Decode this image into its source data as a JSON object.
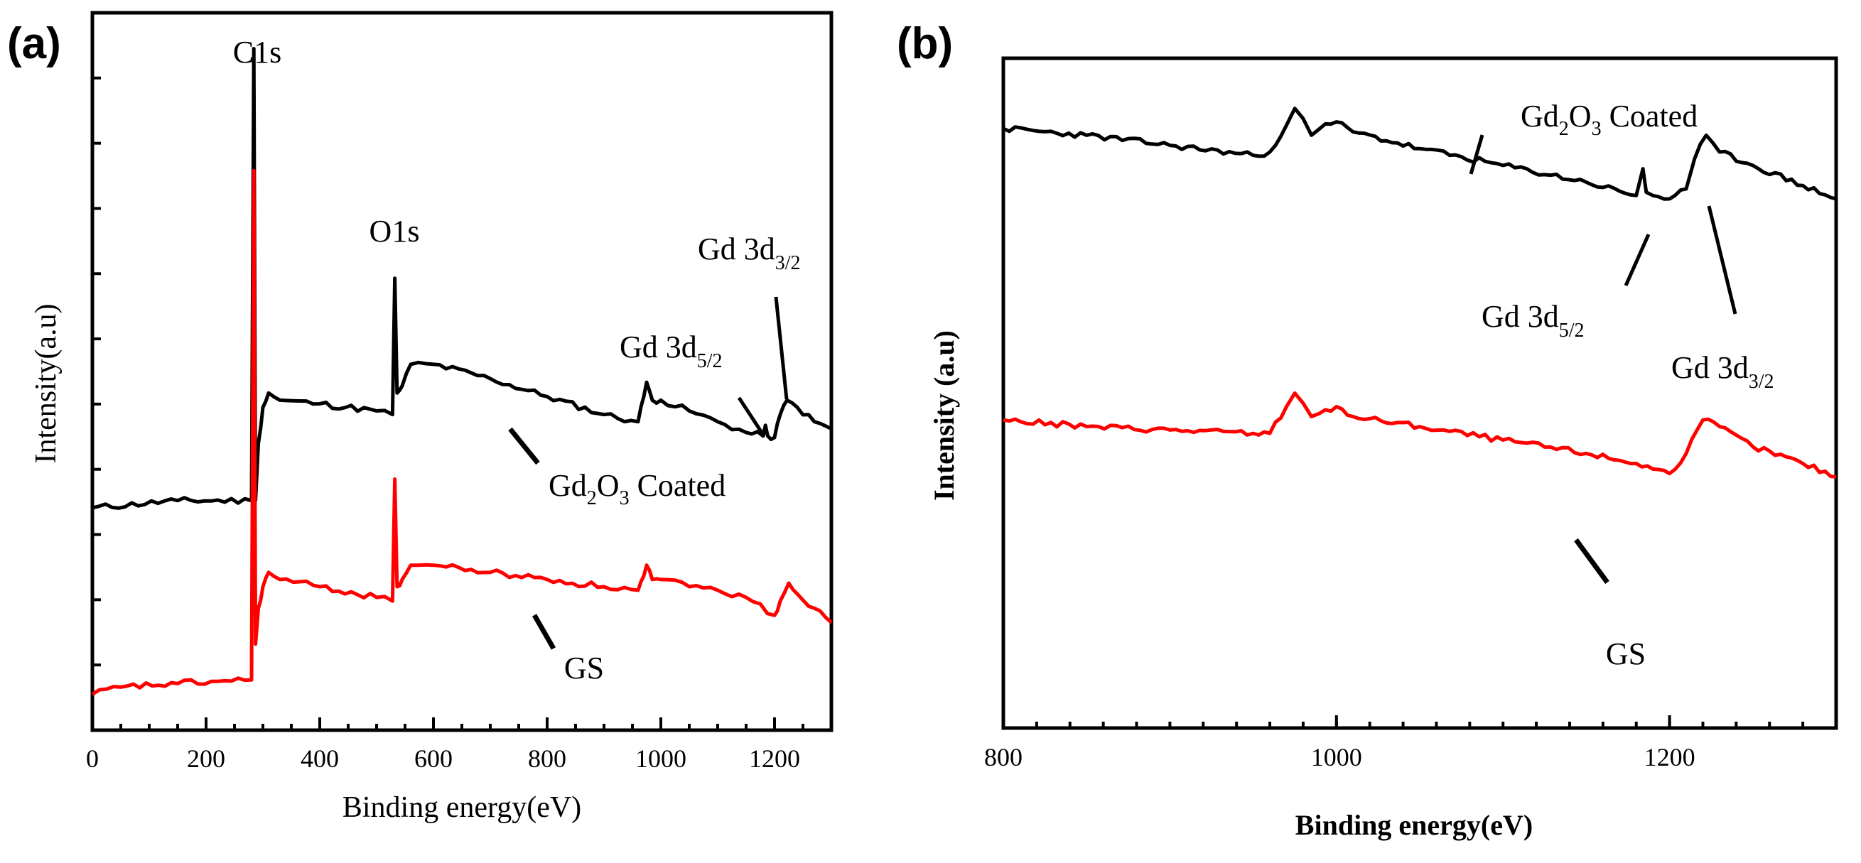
{
  "panels": {
    "a": {
      "label": "(a)"
    },
    "b": {
      "label": "(b)"
    }
  },
  "colors": {
    "coated": "#000000",
    "gs": "#ff0000",
    "frame": "#000000"
  },
  "chart_data": [
    {
      "id": "a",
      "type": "line",
      "title": "",
      "xlabel": "Binding energy(eV)",
      "ylabel": "Intensity(a.u)",
      "xlim": [
        0,
        1300
      ],
      "ylim": [
        0,
        100
      ],
      "xticks": [
        0,
        200,
        400,
        600,
        800,
        1000,
        1200
      ],
      "xtick_labels": [
        "0",
        "200",
        "400",
        "600",
        "800",
        "1000",
        "1200"
      ],
      "yticks_unlabeled": true,
      "series": [
        {
          "name": "Gd2O3 Coated",
          "color": "#000000",
          "x": [
            0,
            150,
            280,
            284,
            287,
            292,
            300,
            310,
            330,
            400,
            500,
            528,
            532,
            536,
            545,
            560,
            600,
            700,
            800,
            900,
            960,
            970,
            975,
            985,
            1000,
            1050,
            1100,
            1150,
            1180,
            1184,
            1188,
            1200,
            1210,
            1222,
            1240,
            1270,
            1300
          ],
          "y": [
            31,
            32,
            32,
            95,
            32,
            40,
            45,
            47,
            46,
            45.5,
            44.5,
            44,
            63,
            47,
            48,
            51,
            51,
            49,
            46.5,
            44,
            43,
            46.5,
            48.5,
            46,
            46,
            44.5,
            43,
            41.5,
            41,
            42.5,
            41,
            40.8,
            44,
            46,
            45,
            43,
            42
          ]
        },
        {
          "name": "GS",
          "color": "#ff0000",
          "x": [
            0,
            50,
            150,
            280,
            284,
            287,
            292,
            300,
            310,
            330,
            400,
            500,
            528,
            532,
            536,
            545,
            560,
            600,
            700,
            800,
            900,
            960,
            970,
            975,
            985,
            1000,
            1050,
            1100,
            1150,
            1200,
            1210,
            1225,
            1240,
            1270,
            1300
          ],
          "y": [
            5,
            6,
            6.5,
            7,
            78,
            12,
            17,
            20,
            22,
            21,
            20,
            18.5,
            18,
            35,
            20,
            21,
            23,
            23,
            22,
            21,
            20,
            19.5,
            21.5,
            23,
            21,
            21,
            20,
            19.5,
            18.5,
            16,
            18,
            20.5,
            19,
            17,
            15
          ]
        }
      ],
      "annotations": [
        {
          "base": "C1s",
          "sub": ""
        },
        {
          "base": "O1s",
          "sub": ""
        },
        {
          "base": "Gd 3d",
          "sub": "3/2"
        },
        {
          "base": "Gd 3d",
          "sub": "5/2"
        },
        {
          "base": "Gd",
          "sub": "2",
          "mid": "O",
          "sub2": "3",
          "tail": " Coated"
        },
        {
          "base": "GS",
          "sub": ""
        }
      ]
    },
    {
      "id": "b",
      "type": "line",
      "title": "",
      "xlabel": "Binding energy(eV)",
      "ylabel": "Intensity (a.u)",
      "xlim": [
        800,
        1300
      ],
      "ylim": [
        0,
        100
      ],
      "xticks": [
        800,
        1000,
        1200
      ],
      "xtick_labels": [
        "800",
        "1000",
        "1200"
      ],
      "yticks_unlabeled": true,
      "series": [
        {
          "name": "Gd2O3 Coated",
          "color": "#000000",
          "x": [
            800,
            850,
            900,
            950,
            960,
            970,
            975,
            980,
            985,
            990,
            1000,
            1010,
            1050,
            1100,
            1150,
            1180,
            1184,
            1186,
            1190,
            1200,
            1210,
            1215,
            1222,
            1230,
            1250,
            1280,
            1300
          ],
          "y": [
            89.5,
            88.5,
            87,
            85.5,
            86,
            90,
            92.5,
            91,
            88.5,
            89.5,
            90.5,
            89,
            86.5,
            84,
            81.5,
            79.5,
            83.5,
            80,
            79.5,
            79,
            80.5,
            85,
            88.5,
            86,
            84,
            81,
            79
          ]
        },
        {
          "name": "GS",
          "color": "#ff0000",
          "x": [
            800,
            850,
            900,
            950,
            960,
            970,
            975,
            980,
            985,
            990,
            1000,
            1010,
            1050,
            1100,
            1150,
            1180,
            1200,
            1210,
            1220,
            1230,
            1250,
            1280,
            1300
          ],
          "y": [
            46,
            45,
            44.5,
            44,
            44,
            48,
            50,
            48.5,
            46.5,
            47,
            48,
            46.5,
            45,
            43,
            41,
            39.5,
            38,
            41,
            46,
            45,
            42,
            39.5,
            37.5
          ]
        }
      ],
      "annotations": [
        {
          "base": "Gd",
          "sub": "2",
          "mid": "O",
          "sub2": "3",
          "tail": " Coated"
        },
        {
          "base": "Gd 3d",
          "sub": "5/2"
        },
        {
          "base": "Gd 3d",
          "sub": "3/2"
        },
        {
          "base": "GS",
          "sub": ""
        }
      ]
    }
  ]
}
